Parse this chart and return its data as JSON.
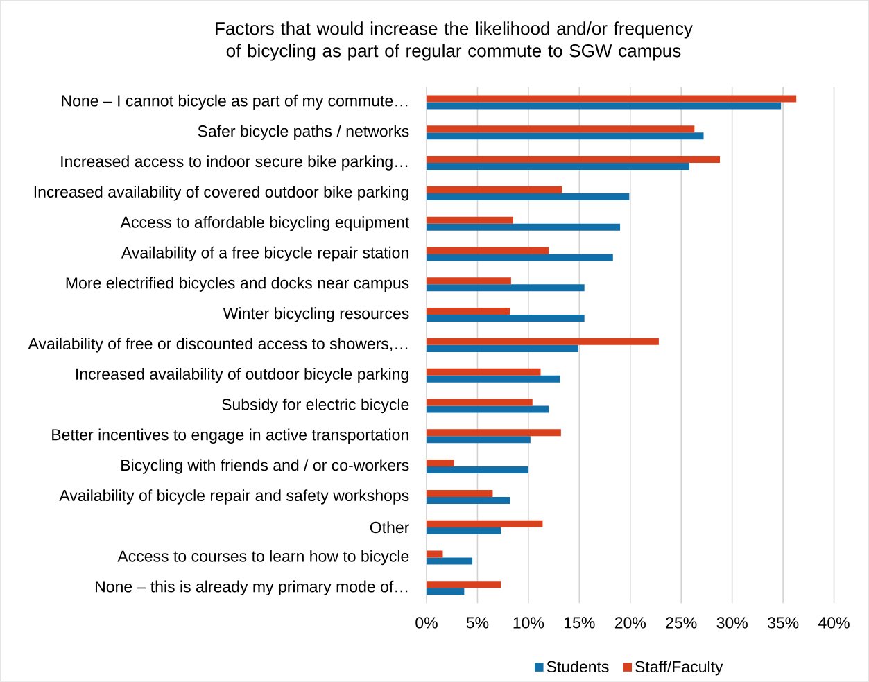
{
  "chart_data": {
    "type": "bar",
    "orientation": "horizontal",
    "title": "Factors that would increase the likelihood and/or frequency of bicycling as part of regular commute to SGW campus",
    "categories": [
      "None – I cannot bicycle as part of my commute…",
      "Safer bicycle paths / networks",
      "Increased access to indoor secure bike parking…",
      "Increased availability of covered outdoor bike parking",
      "Access to affordable bicycling equipment",
      "Availability of a free bicycle repair station",
      "More electrified bicycles and docks near campus",
      "Winter bicycling resources",
      "Availability of free or discounted access to showers,…",
      "Increased availability of outdoor bicycle parking",
      "Subsidy for electric bicycle",
      "Better incentives to engage in active transportation",
      "Bicycling with friends and / or co-workers",
      "Availability of bicycle repair and safety workshops",
      "Other",
      "Access to courses to learn how to bicycle",
      "None – this is already my primary mode of…"
    ],
    "series": [
      {
        "name": "Students",
        "color": "#1170aa",
        "values": [
          34.8,
          27.2,
          25.8,
          19.9,
          19.0,
          18.3,
          15.5,
          15.5,
          14.9,
          13.1,
          12.0,
          10.2,
          10.0,
          8.2,
          7.3,
          4.5,
          3.7
        ]
      },
      {
        "name": "Staff/Faculty",
        "color": "#d9411e",
        "values": [
          36.3,
          26.3,
          28.8,
          13.3,
          8.5,
          12.0,
          8.3,
          8.2,
          22.8,
          11.2,
          10.4,
          13.2,
          2.7,
          6.5,
          11.4,
          1.6,
          7.3
        ]
      }
    ],
    "xlim": [
      0,
      40
    ],
    "xticks": [
      {
        "value": 0,
        "label": "0%"
      },
      {
        "value": 5,
        "label": "5%"
      },
      {
        "value": 10,
        "label": "10%"
      },
      {
        "value": 15,
        "label": "15%"
      },
      {
        "value": 20,
        "label": "20%"
      },
      {
        "value": 25,
        "label": "25%"
      },
      {
        "value": 30,
        "label": "30%"
      },
      {
        "value": 35,
        "label": "35%"
      },
      {
        "value": 40,
        "label": "40%"
      }
    ],
    "grid": "x",
    "legend": "bottom"
  }
}
